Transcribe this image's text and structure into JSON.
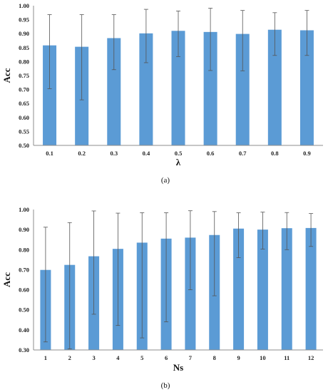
{
  "chart_data": [
    {
      "type": "bar",
      "caption": "(a)",
      "xlabel": "λ",
      "ylabel": "Acc",
      "ylim": [
        0.5,
        1.0
      ],
      "yticks": [
        "0.50",
        "0.55",
        "0.60",
        "0.65",
        "0.70",
        "0.75",
        "0.80",
        "0.85",
        "0.90",
        "0.95",
        "1.00"
      ],
      "grid": false,
      "bar_color": "#5b9bd5",
      "categories": [
        "0.1",
        "0.2",
        "0.3",
        "0.4",
        "0.5",
        "0.6",
        "0.7",
        "0.8",
        "0.9"
      ],
      "values": [
        0.858,
        0.853,
        0.884,
        0.901,
        0.91,
        0.906,
        0.899,
        0.914,
        0.912
      ],
      "error_low": [
        0.703,
        0.663,
        0.771,
        0.796,
        0.818,
        0.768,
        0.767,
        0.822,
        0.822
      ],
      "error_high": [
        0.968,
        0.968,
        0.968,
        0.987,
        0.981,
        0.991,
        0.983,
        0.975,
        0.983
      ]
    },
    {
      "type": "bar",
      "caption": "(b)",
      "xlabel": "Ns",
      "ylabel": "Acc",
      "ylim": [
        0.3,
        1.0
      ],
      "yticks": [
        "0.30",
        "0.40",
        "0.50",
        "0.60",
        "0.70",
        "0.80",
        "0.90",
        "1.00"
      ],
      "grid": false,
      "bar_color": "#5b9bd5",
      "categories": [
        "1",
        "2",
        "3",
        "4",
        "5",
        "6",
        "7",
        "8",
        "9",
        "10",
        "11",
        "12"
      ],
      "values": [
        0.699,
        0.724,
        0.767,
        0.804,
        0.835,
        0.855,
        0.86,
        0.873,
        0.905,
        0.9,
        0.907,
        0.908
      ],
      "error_low": [
        0.34,
        0.305,
        0.478,
        0.422,
        0.36,
        0.44,
        0.6,
        0.57,
        0.76,
        0.803,
        0.8,
        0.816
      ],
      "error_high": [
        0.912,
        0.935,
        0.993,
        0.982,
        0.984,
        0.984,
        0.994,
        0.99,
        0.984,
        0.987,
        0.985,
        0.98
      ]
    }
  ]
}
